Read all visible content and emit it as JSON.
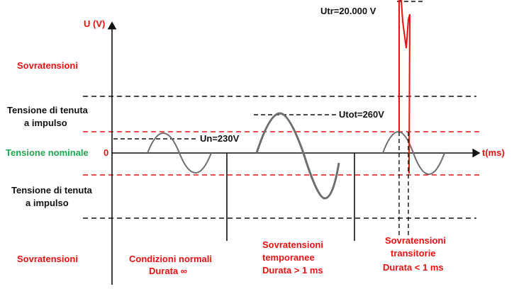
{
  "axes": {
    "y_label": "U (V)",
    "x_label": "t(ms)",
    "origin_label": "0"
  },
  "left_labels": {
    "overvoltage_top": "Sovratensioni",
    "withstand_top_line1": "Tensione di tenuta",
    "withstand_top_line2": "a impulso",
    "nominal": "Tensione nominale",
    "withstand_bottom_line1": "Tensione di tenuta",
    "withstand_bottom_line2": "a impulso",
    "overvoltage_bottom": "Sovratensioni"
  },
  "annotations": {
    "un": "Un=230V",
    "utot": "Utot=260V",
    "utr": "Utr=20.000 V"
  },
  "sections": {
    "normal_line1": "Condizioni normali",
    "normal_line2": "Durata ∞",
    "temporary_line1": "Sovratensioni",
    "temporary_line2": "temporanee",
    "temporary_line3": "Durata > 1 ms",
    "transient_line1": "Sovratensioni",
    "transient_line2": "transitorie",
    "transient_line3": "Durata < 1 ms"
  },
  "colors": {
    "axis": "#111111",
    "sine": "#6e6e6e",
    "red": "#ee1111",
    "green": "#1fa84f",
    "dash_black": "#111111"
  }
}
